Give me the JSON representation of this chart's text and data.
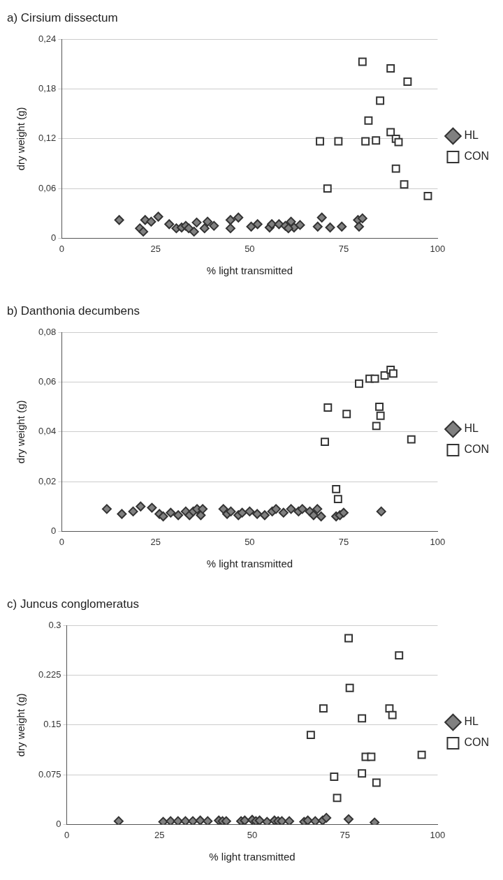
{
  "chart_data": [
    {
      "type": "scatter",
      "title": "a) Cirsium dissectum",
      "xlabel": "% light transmitted",
      "ylabel": "dry weight (g)",
      "xlim": [
        0,
        100
      ],
      "xticks": [
        0,
        25,
        50,
        75,
        100
      ],
      "ylim": [
        0,
        0.24
      ],
      "yticks": [
        0,
        {
          "value": 0.06,
          "label": "0,06"
        },
        {
          "value": 0.12,
          "label": "0,12"
        },
        {
          "value": 0.18,
          "label": "0,18"
        },
        {
          "value": 0.24,
          "label": "0,24"
        }
      ],
      "grid": "y",
      "legend": "right",
      "series": [
        {
          "name": "HL",
          "color": "#808080",
          "marker": "diamond",
          "x": [
            15.3,
            20.8,
            21.7,
            22.2,
            23.8,
            25.7,
            28.6,
            30.5,
            31.9,
            33.0,
            33.8,
            35.2,
            35.9,
            38.0,
            38.8,
            40.5,
            44.9,
            44.9,
            47.0,
            50.4,
            52.1,
            55.3,
            55.9,
            57.8,
            59.5,
            61.0,
            61.8,
            60.3,
            63.4,
            69.2,
            68.1,
            71.4,
            74.5,
            78.8,
            80.0,
            79.1
          ],
          "values": [
            0.022,
            0.012,
            0.008,
            0.022,
            0.02,
            0.026,
            0.017,
            0.012,
            0.013,
            0.015,
            0.012,
            0.008,
            0.019,
            0.012,
            0.02,
            0.015,
            0.022,
            0.012,
            0.025,
            0.014,
            0.017,
            0.013,
            0.017,
            0.017,
            0.015,
            0.02,
            0.013,
            0.012,
            0.016,
            0.025,
            0.014,
            0.013,
            0.014,
            0.022,
            0.024,
            0.014
          ]
        },
        {
          "name": "CON",
          "color": "#ffffff",
          "marker": "square",
          "x": [
            80.0,
            87.5,
            92.0,
            84.7,
            81.6,
            68.7,
            73.6,
            80.8,
            83.6,
            87.5,
            88.9,
            89.6,
            88.9,
            91.1,
            97.4,
            70.7
          ],
          "values": [
            0.213,
            0.205,
            0.189,
            0.166,
            0.142,
            0.117,
            0.117,
            0.117,
            0.118,
            0.128,
            0.12,
            0.116,
            0.084,
            0.065,
            0.051,
            0.06
          ]
        }
      ]
    },
    {
      "type": "scatter",
      "title": "b) Danthonia decumbens",
      "xlabel": "% light transmitted",
      "ylabel": "dry weight (g)",
      "xlim": [
        0,
        100
      ],
      "xticks": [
        0,
        25,
        50,
        75,
        100
      ],
      "ylim": [
        0,
        0.08
      ],
      "yticks": [
        0,
        {
          "value": 0.02,
          "label": "0,02"
        },
        {
          "value": 0.04,
          "label": "0,04"
        },
        {
          "value": 0.06,
          "label": "0,06"
        },
        {
          "value": 0.08,
          "label": "0,08"
        }
      ],
      "grid": "y",
      "legend": "right",
      "series": [
        {
          "name": "HL",
          "color": "#808080",
          "marker": "diamond",
          "x": [
            12,
            16,
            19,
            21,
            24,
            26,
            27,
            29,
            31,
            33,
            34,
            35,
            36,
            37,
            37.5,
            43,
            44,
            45,
            47,
            48,
            50,
            52,
            54,
            56,
            57,
            59,
            61,
            63,
            64,
            66,
            67,
            68,
            69,
            73,
            74,
            75,
            85
          ],
          "values": [
            0.009,
            0.007,
            0.008,
            0.01,
            0.0095,
            0.007,
            0.006,
            0.0075,
            0.0065,
            0.008,
            0.0065,
            0.008,
            0.009,
            0.0065,
            0.009,
            0.009,
            0.007,
            0.008,
            0.0065,
            0.0075,
            0.008,
            0.007,
            0.0065,
            0.008,
            0.009,
            0.0075,
            0.009,
            0.008,
            0.009,
            0.008,
            0.0065,
            0.009,
            0.006,
            0.006,
            0.0065,
            0.0075,
            0.008
          ]
        },
        {
          "name": "CON",
          "color": "#ffffff",
          "marker": "square",
          "x": [
            79.1,
            81.9,
            83.3,
            85.9,
            87.5,
            88.2,
            70.8,
            75.8,
            84.5,
            84.8,
            83.7,
            70,
            93,
            73,
            73.5
          ],
          "values": [
            0.0594,
            0.0614,
            0.0614,
            0.0627,
            0.065,
            0.0635,
            0.0498,
            0.0472,
            0.0501,
            0.0465,
            0.0424,
            0.036,
            0.037,
            0.017,
            0.013
          ]
        }
      ]
    },
    {
      "type": "scatter",
      "title": "c) Juncus conglomeratus",
      "xlabel": "% light transmitted",
      "ylabel": "dry weight (g)",
      "xlim": [
        0,
        100
      ],
      "xticks": [
        0,
        25,
        50,
        75,
        100
      ],
      "ylim": [
        0,
        0.3
      ],
      "yticks": [
        0,
        0.075,
        0.15,
        0.225,
        0.3
      ],
      "grid": "y",
      "legend": "right",
      "series": [
        {
          "name": "HL",
          "color": "#808080",
          "marker": "diamond",
          "x": [
            14,
            26,
            28,
            30,
            32,
            34,
            36,
            38,
            41,
            42,
            43,
            47,
            48,
            50,
            51,
            52,
            54,
            56,
            57,
            58,
            60,
            64,
            65,
            67,
            69,
            70,
            76,
            83
          ],
          "values": [
            0.005,
            0.004,
            0.005,
            0.005,
            0.005,
            0.005,
            0.006,
            0.005,
            0.006,
            0.005,
            0.005,
            0.005,
            0.006,
            0.007,
            0.005,
            0.006,
            0.004,
            0.006,
            0.005,
            0.005,
            0.005,
            0.004,
            0.006,
            0.005,
            0.006,
            0.01,
            0.008,
            0.003
          ]
        },
        {
          "name": "CON",
          "color": "#ffffff",
          "marker": "square",
          "x": [
            65.8,
            69.2,
            72.1,
            72.9,
            76.0,
            76.3,
            79.6,
            79.6,
            80.6,
            82.1,
            83.5,
            87.0,
            87.8,
            89.6,
            95.7
          ],
          "values": [
            0.135,
            0.175,
            0.072,
            0.04,
            0.281,
            0.206,
            0.16,
            0.077,
            0.102,
            0.102,
            0.063,
            0.175,
            0.165,
            0.255,
            0.105
          ]
        }
      ]
    }
  ]
}
